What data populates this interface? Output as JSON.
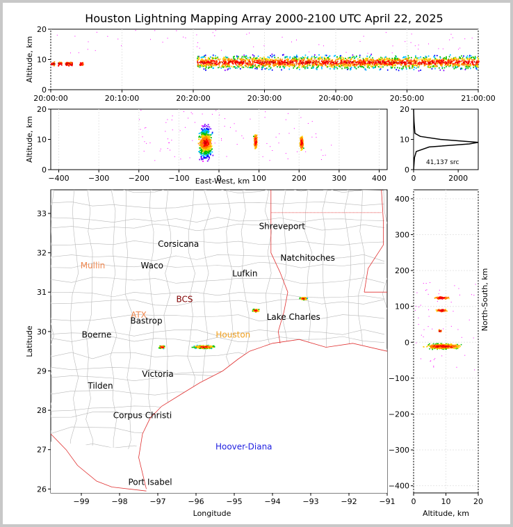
{
  "title": "Houston Lightning Mapping Array 2000-2100 UTC April 22, 2025",
  "colors": {
    "frame": "#c8c8c8",
    "state_border": "#e03030",
    "county": "#b8b8b8",
    "coast": "#e03030"
  },
  "chart_data": [
    {
      "id": "altitude_time",
      "type": "scatter",
      "ylabel": "Altitude, km",
      "ylim": [
        0,
        20
      ],
      "yticks": [
        "0",
        "10",
        "20"
      ],
      "xlim": [
        "20:00:00",
        "21:00:00"
      ],
      "xticks": [
        "20:00:00",
        "20:10:00",
        "20:20:00",
        "20:30:00",
        "20:40:00",
        "20:50:00",
        "21:00:00"
      ],
      "grid": true,
      "bands": [
        {
          "t_start_min": 0,
          "t_end_min": 0.5,
          "alt_km": 8.5
        },
        {
          "t_start_min": 1,
          "t_end_min": 1.5,
          "alt_km": 8.5
        },
        {
          "t_start_min": 2,
          "t_end_min": 3,
          "alt_km": 8.5
        },
        {
          "t_start_min": 4,
          "t_end_min": 4.5,
          "alt_km": 8.5
        },
        {
          "t_start_min": 20.5,
          "t_end_min": 60,
          "alt_km": 9
        }
      ]
    },
    {
      "id": "altitude_eastwest",
      "type": "scatter",
      "xlabel": "East-West, km",
      "ylabel": "Altitude, km",
      "xlim": [
        -420,
        420
      ],
      "ylim": [
        0,
        20
      ],
      "xticks": [
        "-400",
        "-300",
        "-200",
        "-100",
        "0",
        "100",
        "200",
        "300",
        "400"
      ],
      "yticks": [
        "0",
        "10",
        "20"
      ],
      "grid": true,
      "clusters": [
        {
          "x_km": -35,
          "alt_km": 9,
          "width_km": 50,
          "intensity": "high"
        },
        {
          "x_km": 90,
          "alt_km": 9.5,
          "width_km": 14,
          "intensity": "medium"
        },
        {
          "x_km": 205,
          "alt_km": 9,
          "width_km": 14,
          "intensity": "medium"
        }
      ]
    },
    {
      "id": "altitude_histogram",
      "type": "line",
      "annotation": "41,137 src",
      "xlim": [
        0,
        2900
      ],
      "xticks": [
        "0",
        "2000"
      ],
      "ylim": [
        0,
        20
      ],
      "yticks": [
        "0",
        "10",
        "20"
      ],
      "series": [
        {
          "values": [
            [
              0,
              0
            ],
            [
              40,
              4
            ],
            [
              120,
              6
            ],
            [
              700,
              7.5
            ],
            [
              2500,
              8.5
            ],
            [
              2900,
              9
            ],
            [
              1200,
              10
            ],
            [
              300,
              11
            ],
            [
              60,
              12
            ],
            [
              20,
              16
            ],
            [
              0,
              20
            ]
          ]
        }
      ]
    },
    {
      "id": "plan_view",
      "type": "scatter",
      "xlabel": "Longitude",
      "ylabel": "Latitude",
      "xlim": [
        -99.8,
        -91
      ],
      "ylim": [
        25.9,
        33.6
      ],
      "xticks": [
        "−99",
        "−98",
        "−97",
        "−96",
        "−95",
        "−94",
        "−93",
        "−92",
        "−91"
      ],
      "yticks": [
        "26",
        "27",
        "28",
        "29",
        "30",
        "31",
        "32",
        "33"
      ],
      "cities": [
        {
          "name": "Shreveport",
          "lon": -93.75,
          "lat": 32.6,
          "color": "#000000"
        },
        {
          "name": "Corsicana",
          "lon": -96.46,
          "lat": 32.15,
          "color": "#000000"
        },
        {
          "name": "Mullin",
          "lon": -98.7,
          "lat": 31.6,
          "color": "#f08850"
        },
        {
          "name": "Waco",
          "lon": -97.15,
          "lat": 31.6,
          "color": "#000000"
        },
        {
          "name": "Natchitoches",
          "lon": -93.08,
          "lat": 31.8,
          "color": "#000000"
        },
        {
          "name": "Lufkin",
          "lon": -94.72,
          "lat": 31.4,
          "color": "#000000"
        },
        {
          "name": "BCS",
          "lon": -96.3,
          "lat": 30.75,
          "color": "#800000"
        },
        {
          "name": "ATX",
          "lon": -97.5,
          "lat": 30.35,
          "color": "#f08850"
        },
        {
          "name": "Bastrop",
          "lon": -97.3,
          "lat": 30.2,
          "color": "#000000"
        },
        {
          "name": "Lake Charles",
          "lon": -93.45,
          "lat": 30.3,
          "color": "#000000"
        },
        {
          "name": "Boerne",
          "lon": -98.6,
          "lat": 29.85,
          "color": "#000000"
        },
        {
          "name": "Houston",
          "lon": -95.03,
          "lat": 29.85,
          "color": "#f0a020"
        },
        {
          "name": "Victoria",
          "lon": -97.0,
          "lat": 28.85,
          "color": "#000000"
        },
        {
          "name": "Tilden",
          "lon": -98.5,
          "lat": 28.55,
          "color": "#000000"
        },
        {
          "name": "Corpus Christi",
          "lon": -97.4,
          "lat": 27.8,
          "color": "#000000"
        },
        {
          "name": "Hoover-Diana",
          "lon": -94.75,
          "lat": 27.0,
          "color": "#2020e0"
        },
        {
          "name": "Port Isabel",
          "lon": -97.2,
          "lat": 26.1,
          "color": "#000000"
        }
      ],
      "clusters": [
        {
          "lon": -95.8,
          "lat": 29.62,
          "size": "large"
        },
        {
          "lon": -96.9,
          "lat": 29.62,
          "size": "small"
        },
        {
          "lon": -94.45,
          "lat": 30.55,
          "size": "small"
        },
        {
          "lon": -93.2,
          "lat": 30.85,
          "size": "small"
        }
      ]
    },
    {
      "id": "northsouth_altitude",
      "type": "scatter",
      "xlabel": "Altitude, km",
      "ylabel": "North-South, km",
      "xlim": [
        0,
        20
      ],
      "ylim": [
        -420,
        425
      ],
      "xticks": [
        "0",
        "10",
        "20"
      ],
      "yticks": [
        "−400",
        "−300",
        "−200",
        "−100",
        "0",
        "100",
        "200",
        "300",
        "400"
      ],
      "grid": true,
      "clusters": [
        {
          "alt_km": 9,
          "y_km": -10,
          "width_alt": 19,
          "intensity": "high"
        },
        {
          "alt_km": 8.5,
          "y_km": 90,
          "width_alt": 6,
          "intensity": "medium"
        },
        {
          "alt_km": 8.5,
          "y_km": 125,
          "width_alt": 8,
          "intensity": "medium"
        },
        {
          "alt_km": 8,
          "y_km": 33,
          "width_alt": 2,
          "intensity": "low"
        }
      ]
    }
  ]
}
